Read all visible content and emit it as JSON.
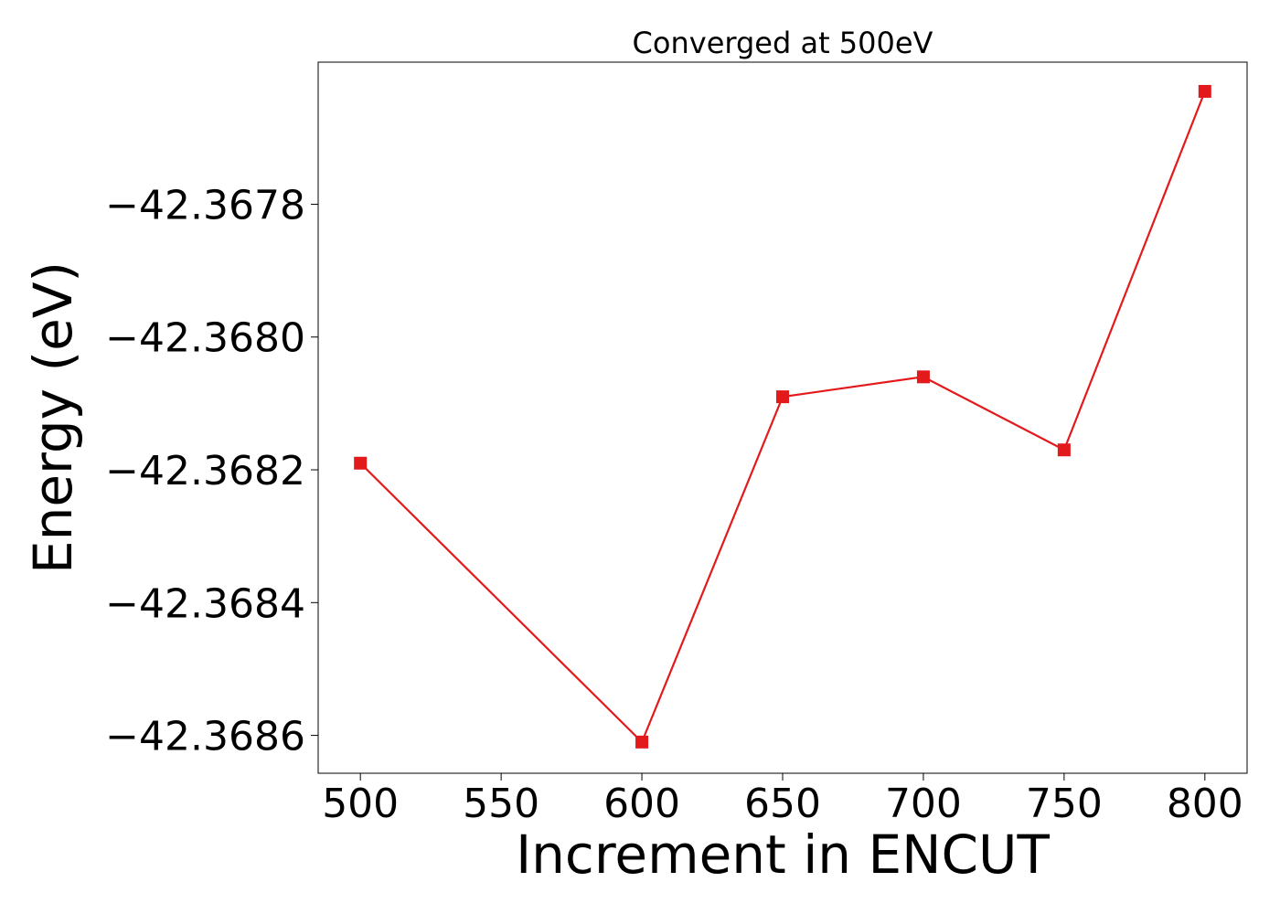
{
  "chart_data": {
    "type": "line",
    "title": "Converged at 500eV",
    "xlabel": "Increment in ENCUT",
    "ylabel": "Energy (eV)",
    "x": [
      500,
      600,
      650,
      700,
      750,
      800
    ],
    "series": [
      {
        "values": [
          -42.36819,
          -42.36861,
          -42.36809,
          -42.36806,
          -42.36817,
          -42.36763
        ],
        "color": "#e31a1c",
        "marker": "square"
      }
    ],
    "x_ticks": [
      500,
      550,
      600,
      650,
      700,
      750,
      800
    ],
    "x_tick_labels": [
      "500",
      "550",
      "600",
      "650",
      "700",
      "750",
      "800"
    ],
    "y_ticks": [
      -42.3678,
      -42.368,
      -42.3682,
      -42.3684,
      -42.3686
    ],
    "y_tick_labels": [
      "−42.3678",
      "−42.3680",
      "−42.3682",
      "−42.3684",
      "−42.3686"
    ],
    "xlim": [
      485,
      815
    ],
    "ylim": [
      -42.368657,
      -42.367586
    ],
    "grid": false,
    "legend": "none"
  }
}
